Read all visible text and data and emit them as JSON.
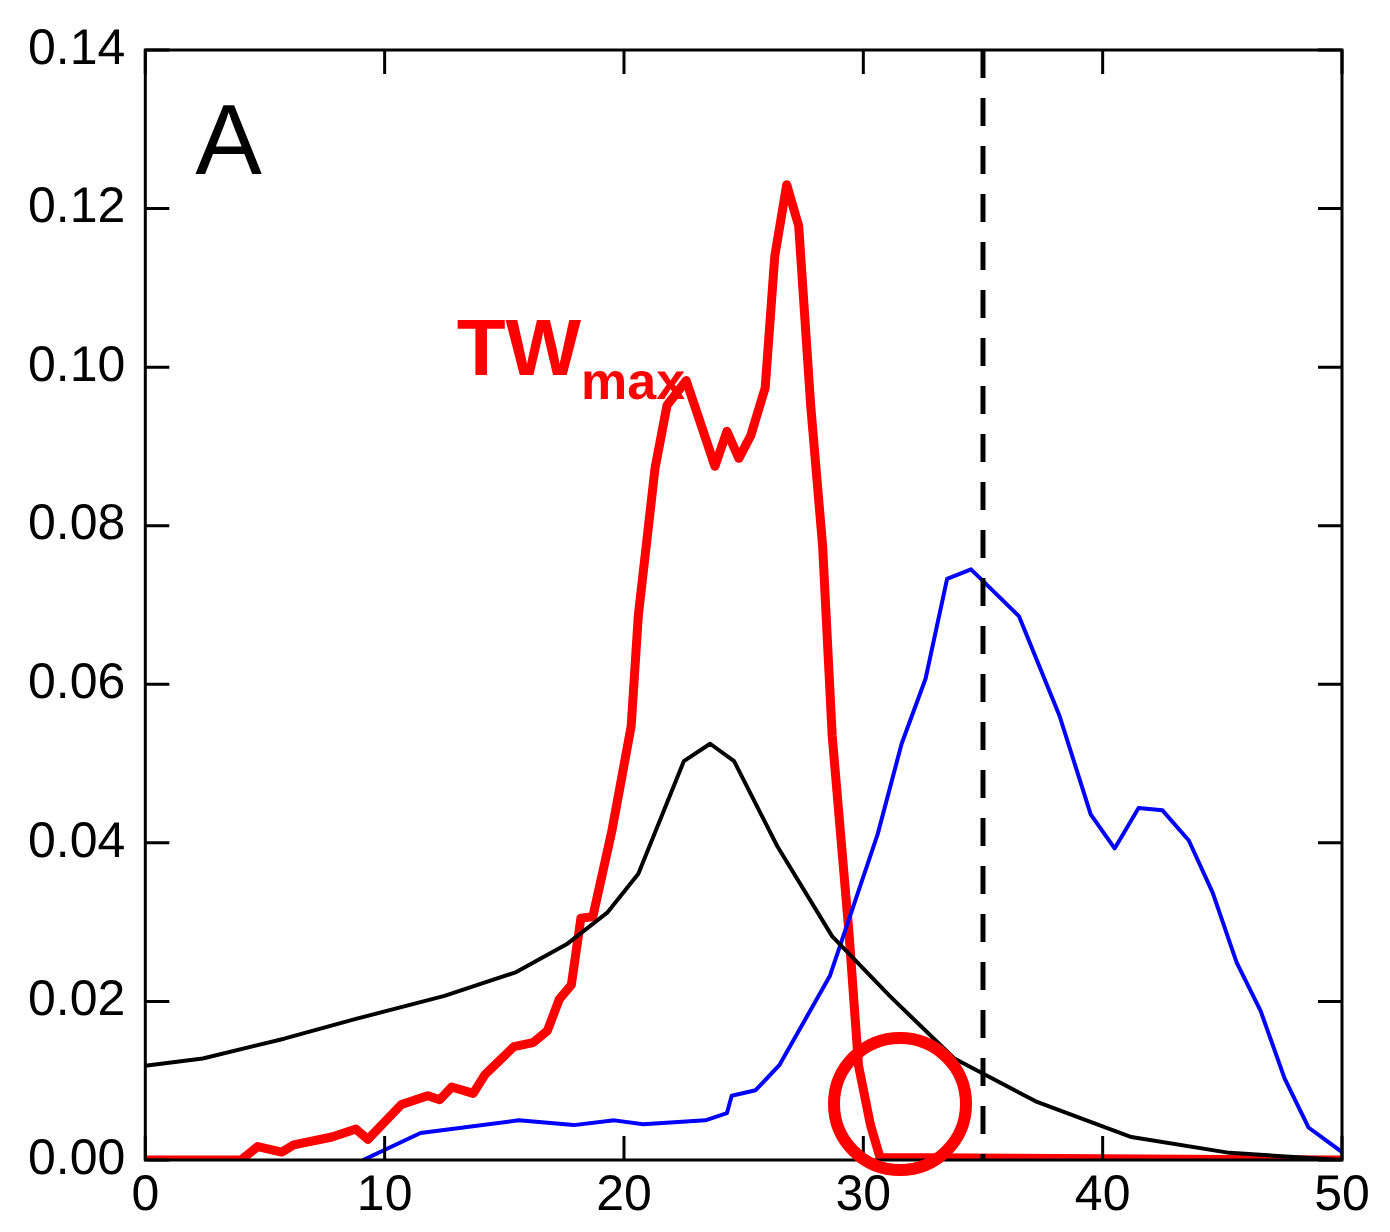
{
  "chart_data": {
    "type": "line",
    "annotations": [
      "A"
    ],
    "xlim": [
      0,
      50
    ],
    "xticks": [
      0,
      10,
      20,
      30,
      40,
      50
    ],
    "ylim": [
      0,
      0.14
    ],
    "yticks": [
      {
        "value": 0,
        "label": "0.00"
      },
      {
        "value": 0.02,
        "label": "0.02"
      },
      {
        "value": 0.04,
        "label": "0.04"
      },
      {
        "value": 0.06,
        "label": "0.06"
      },
      {
        "value": 0.08,
        "label": "0.08"
      },
      {
        "value": 0.1,
        "label": "0.10"
      },
      {
        "value": 0.12,
        "label": "0.12"
      },
      {
        "value": 0.14,
        "label": "0.14"
      }
    ],
    "grid": false,
    "legend": false,
    "marker": "none",
    "line_style": "solid",
    "ref_lines": [
      {
        "axis": "x",
        "value": 35,
        "line_style": "dashed",
        "color": "#000000"
      }
    ],
    "series": [
      {
        "color": "#000000",
        "x": [
          0,
          2.4,
          5.8,
          8.8,
          12.5,
          15.5,
          17.6,
          19.3,
          20.6,
          22.5,
          23.6,
          24.6,
          26.4,
          28.7,
          31.1,
          33.8,
          37.2,
          41.2,
          45.3,
          50
        ],
        "values": [
          0.0119,
          0.0128,
          0.0153,
          0.0178,
          0.0207,
          0.0237,
          0.0272,
          0.0312,
          0.0361,
          0.0503,
          0.0525,
          0.0503,
          0.0396,
          0.0282,
          0.0207,
          0.0128,
          0.0074,
          0.0029,
          0.0009,
          0
        ]
      },
      {
        "color": "#0000ff",
        "x": [
          9.1,
          11.5,
          15.6,
          17.9,
          19.6,
          20.8,
          23.4,
          24.3,
          24.5,
          25.5,
          26.5,
          28.6,
          30.6,
          31.6,
          32.6,
          33.5,
          34.5,
          36.5,
          38.2,
          39.5,
          40.5,
          41.5,
          42.5,
          43.6,
          44.6,
          45.6,
          46.6,
          47.6,
          48.6,
          50
        ],
        "values": [
          0,
          0.0034,
          0.005,
          0.0044,
          0.005,
          0.0045,
          0.005,
          0.0059,
          0.0081,
          0.0088,
          0.012,
          0.0232,
          0.0411,
          0.0525,
          0.0607,
          0.0733,
          0.0745,
          0.0686,
          0.056,
          0.0436,
          0.0393,
          0.0444,
          0.0441,
          0.0403,
          0.0337,
          0.0249,
          0.0188,
          0.0103,
          0.0041,
          0.001
        ]
      },
      {
        "name": "TW$_{max}$",
        "color": "#ff0000",
        "x": [
          0,
          4,
          4.7,
          5.7,
          6.2,
          7.8,
          8.8,
          9.3,
          10.7,
          11.8,
          12.3,
          12.8,
          13.7,
          14.2,
          15.4,
          16.2,
          16.8,
          17.3,
          17.8,
          18.2,
          18.7,
          19.5,
          20.3,
          20.6,
          21.3,
          21.8,
          22.6,
          23.8,
          24.3,
          24.8,
          25.3,
          25.9,
          26.3,
          26.8,
          27.3,
          27.8,
          28.3,
          28.7,
          29.4,
          29.8,
          30.3,
          30.7,
          50
        ],
        "values": [
          0,
          0,
          0.0017,
          0.001,
          0.0019,
          0.0029,
          0.0039,
          0.0026,
          0.007,
          0.0081,
          0.0076,
          0.0092,
          0.0084,
          0.0108,
          0.0143,
          0.0148,
          0.0163,
          0.0203,
          0.0221,
          0.0305,
          0.0307,
          0.0416,
          0.0547,
          0.0687,
          0.0873,
          0.0952,
          0.0983,
          0.0875,
          0.0919,
          0.0885,
          0.0914,
          0.0974,
          0.114,
          0.123,
          0.1178,
          0.0952,
          0.0774,
          0.0535,
          0.0287,
          0.0119,
          0.0044,
          0.0003,
          0
        ]
      }
    ]
  }
}
